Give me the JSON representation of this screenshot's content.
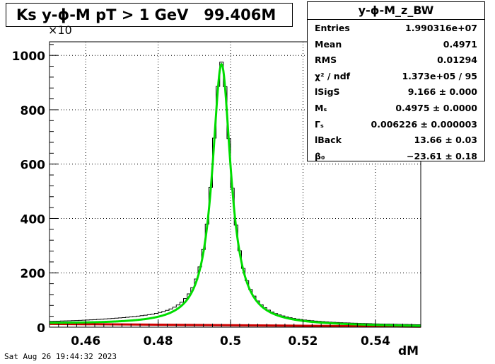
{
  "title": "Ks y-ϕ-M pT > 1 GeV   99.406M",
  "footer": "Sat Aug 26 19:44:32 2023",
  "multiplier": "×10",
  "stats": {
    "title": "y-ϕ-M_z_BW",
    "rows": [
      {
        "key": "Entries",
        "value": "1.990316e+07"
      },
      {
        "key": "Mean",
        "value": "0.4971"
      },
      {
        "key": "RMS",
        "value": "0.01294"
      },
      {
        "key": "χ² / ndf",
        "value": "1.373e+05 / 95"
      },
      {
        "key": "lSigS",
        "value": "9.166 ± 0.000"
      },
      {
        "key": "Mₛ",
        "value": "0.4975 ± 0.0000"
      },
      {
        "key": "Γₛ",
        "value": "0.006226 ± 0.000003"
      },
      {
        "key": "lBack",
        "value": "13.66 ± 0.03"
      },
      {
        "key": "β₀",
        "value": "−23.61 ± 0.18"
      }
    ]
  },
  "chart_data": {
    "type": "histogram",
    "xlabel": "dM",
    "ylabel": "",
    "xlim": [
      0.45,
      0.5525
    ],
    "ylim": [
      0,
      1050
    ],
    "y_scale_note": "×10",
    "x_ticks": [
      0.46,
      0.48,
      0.5,
      0.52,
      0.54
    ],
    "x_tick_labels": [
      "0.46",
      "0.48",
      "0.5",
      "0.52",
      "0.54"
    ],
    "y_ticks": [
      0,
      200,
      400,
      600,
      800,
      1000
    ],
    "y_tick_labels": [
      "0",
      "200",
      "400",
      "600",
      "800",
      "1000"
    ],
    "grid": true,
    "bin_width": 0.001,
    "fit": {
      "mass": 0.4975,
      "gamma": 0.006226,
      "peak": 960
    },
    "background": {
      "start": 12,
      "end": 2
    },
    "colors": {
      "hist": "#000000",
      "fit": "#00dd00",
      "background": "#cc0000"
    }
  }
}
